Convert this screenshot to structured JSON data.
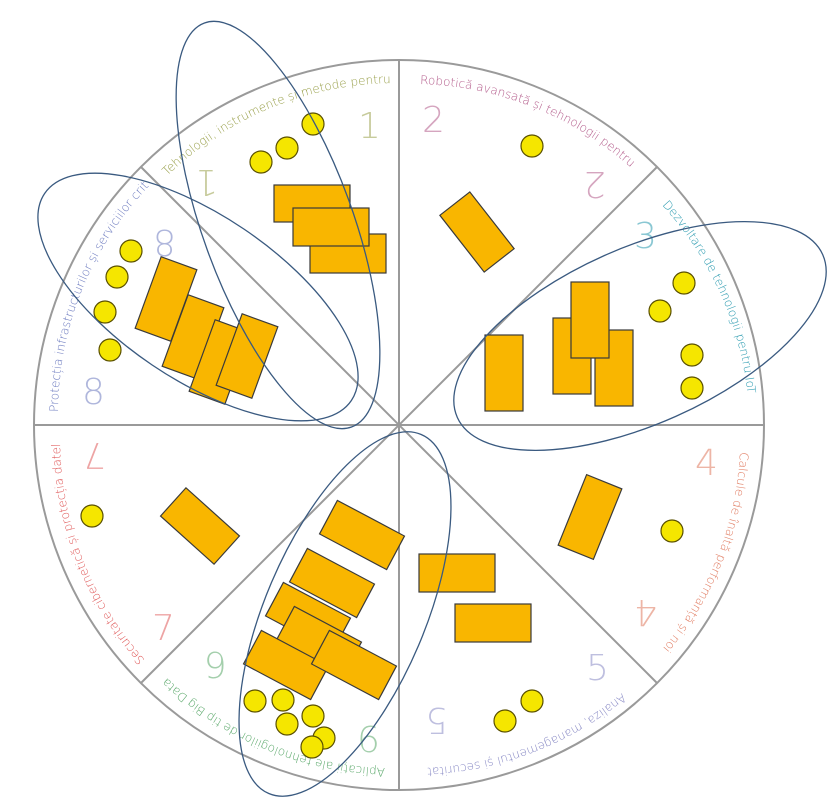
{
  "colors": {
    "background": "#ffffff",
    "circle_stroke": "#9a9a9a",
    "ellipse_stroke": "#3a5a80",
    "card_fill": "#f9b600",
    "card_stroke": "#3a3a3a",
    "token_fill": "#f5e600",
    "token_stroke": "#5a5000"
  },
  "sectors": [
    {
      "number": "1",
      "label": "Tehnologii, instrumente și metode pentru ...",
      "color": "#9aa14c"
    },
    {
      "number": "2",
      "label": "Robotică avansată și tehnologii pentru ...",
      "color": "#b45d8c"
    },
    {
      "number": "3",
      "label": "Dezvoltare de tehnologii pentru IoT",
      "color": "#2b9bb0"
    },
    {
      "number": "4",
      "label": "Calcule de înaltă performanță și noi ...",
      "color": "#e07a5f"
    },
    {
      "number": "5",
      "label": "Analiza, managementul și securitatea ...",
      "color": "#8a8bc6"
    },
    {
      "number": "6",
      "label": "Aplicații ale tehnologiilor de tip Big Data și ...",
      "color": "#5aa86a"
    },
    {
      "number": "7",
      "label": "Securitate cibernetică și protecția datelor ...",
      "color": "#e05a5a"
    },
    {
      "number": "8",
      "label": "Protecția infrastructurilor și serviciilor critice",
      "color": "#6e7cc0"
    }
  ],
  "legend_note": "",
  "icons": {
    "card": "card-rect",
    "token": "token-dot"
  }
}
